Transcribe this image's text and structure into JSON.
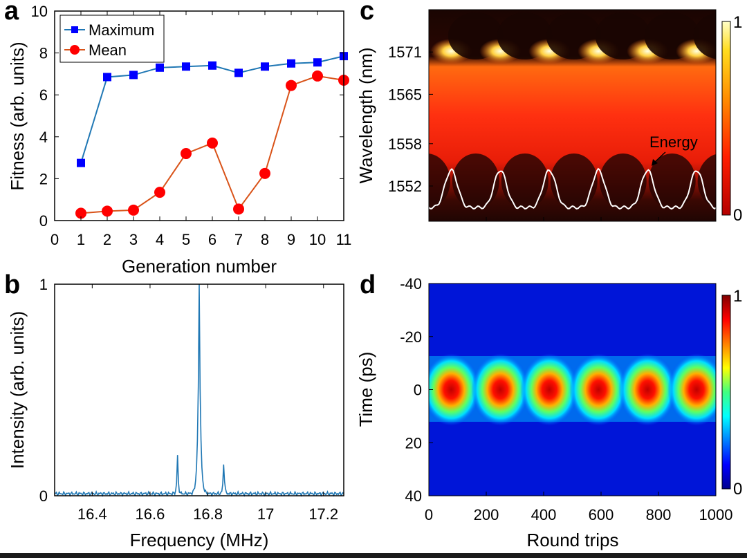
{
  "panels": {
    "a": "a",
    "b": "b",
    "c": "c",
    "d": "d"
  },
  "chart_data": [
    {
      "id": "a",
      "type": "line",
      "xlabel": "Generation number",
      "ylabel": "Fitness (arb. units)",
      "xlim": [
        0,
        11
      ],
      "ylim": [
        0,
        10
      ],
      "xticks": [
        "0",
        "1",
        "2",
        "3",
        "4",
        "5",
        "6",
        "7",
        "8",
        "9",
        "10",
        "11"
      ],
      "yticks": [
        "0",
        "2",
        "4",
        "6",
        "8",
        "10"
      ],
      "legend": {
        "placement": "top-left"
      },
      "series": [
        {
          "name": "Maximum",
          "color": "#1f77b4",
          "marker": "square",
          "marker_color": "#0000ff",
          "x": [
            1,
            2,
            3,
            4,
            5,
            6,
            7,
            8,
            9,
            10,
            11
          ],
          "values": [
            2.75,
            6.85,
            6.95,
            7.3,
            7.35,
            7.4,
            7.05,
            7.35,
            7.5,
            7.55,
            7.85
          ]
        },
        {
          "name": "Mean",
          "color": "#d95319",
          "marker": "circle",
          "marker_color": "#ff0000",
          "x": [
            1,
            2,
            3,
            4,
            5,
            6,
            7,
            8,
            9,
            10,
            11
          ],
          "values": [
            0.35,
            0.45,
            0.5,
            1.35,
            3.2,
            3.7,
            0.55,
            2.25,
            6.45,
            6.9,
            6.7
          ]
        }
      ]
    },
    {
      "id": "b",
      "type": "line",
      "xlabel": "Frequency (MHz)",
      "ylabel": "Intensity (arb. units)",
      "xlim": [
        16.27,
        17.27
      ],
      "ylim": [
        0,
        1
      ],
      "xticks": [
        "16.4",
        "16.6",
        "16.8",
        "17",
        "17.2"
      ],
      "xtick_values": [
        16.4,
        16.6,
        16.8,
        17.0,
        17.2
      ],
      "yticks": [
        "0",
        "1"
      ],
      "color": "#1f77b4",
      "peaks": [
        {
          "x": 16.77,
          "value": 1.0
        },
        {
          "x": 16.695,
          "value": 0.18
        },
        {
          "x": 16.855,
          "value": 0.18
        }
      ],
      "noise_floor": 0.01
    },
    {
      "id": "c",
      "type": "heatmap",
      "xlabel": "",
      "ylabel": "Wavelength (nm)",
      "xlim": [
        0,
        1000
      ],
      "ylim": [
        1547,
        1577
      ],
      "yticks": [
        "1552",
        "1558",
        "1565",
        "1571"
      ],
      "ytick_values": [
        1552,
        1558,
        1565,
        1571
      ],
      "colormap": "hot",
      "colorbar": {
        "ticks": [
          "0",
          "1"
        ],
        "range": [
          0,
          1
        ]
      },
      "period": 171,
      "first_peak": 78,
      "annotation": {
        "text": "Energy",
        "arrow": true
      },
      "overlay_curve": {
        "name": "Energy",
        "color": "#ffffff"
      }
    },
    {
      "id": "d",
      "type": "heatmap",
      "xlabel": "Round trips",
      "ylabel": "Time (ps)",
      "xlim": [
        0,
        1000
      ],
      "ylim": [
        -40,
        40
      ],
      "xticks": [
        "0",
        "200",
        "400",
        "600",
        "800",
        "1000"
      ],
      "xtick_values": [
        0,
        200,
        400,
        600,
        800,
        1000
      ],
      "yticks": [
        "-40",
        "-20",
        "0",
        "20",
        "40"
      ],
      "ytick_values": [
        -40,
        -20,
        0,
        20,
        40
      ],
      "colormap": "jet",
      "colorbar": {
        "ticks": [
          "0",
          "1"
        ],
        "range": [
          0,
          1
        ]
      },
      "period": 171,
      "first_peak": 78
    }
  ]
}
